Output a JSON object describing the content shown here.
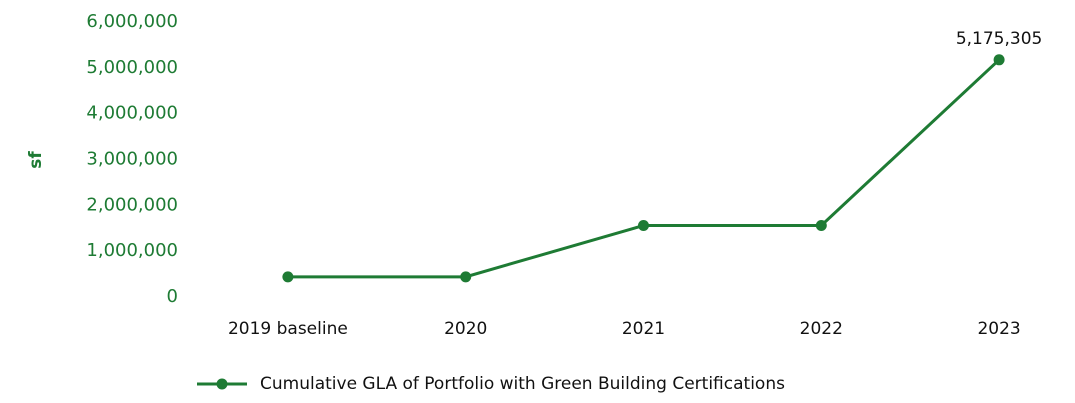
{
  "chart_data": {
    "type": "line",
    "y_label": "sf",
    "categories": [
      "2019 baseline",
      "2020",
      "2021",
      "2022",
      "2023"
    ],
    "series": [
      {
        "name": "Cumulative GLA of Portfolio with Green Building Certifications",
        "color": "#1e7b34",
        "values": [
          440000,
          440000,
          1560000,
          1560000,
          5175305
        ],
        "value_labels": [
          null,
          null,
          null,
          null,
          "5,175,305"
        ]
      }
    ],
    "ylim": [
      0,
      6000000
    ],
    "yticks": [
      0,
      {
        "value": 1000000,
        "label": "1,000,000"
      },
      {
        "value": 2000000,
        "label": "2,000,000"
      },
      {
        "value": 3000000,
        "label": "3,000,000"
      },
      {
        "value": 4000000,
        "label": "4,000,000"
      },
      {
        "value": 5000000,
        "label": "5,000,000"
      },
      {
        "value": 6000000,
        "label": "6,000,000"
      }
    ],
    "legend": "bottom",
    "grid": false
  }
}
